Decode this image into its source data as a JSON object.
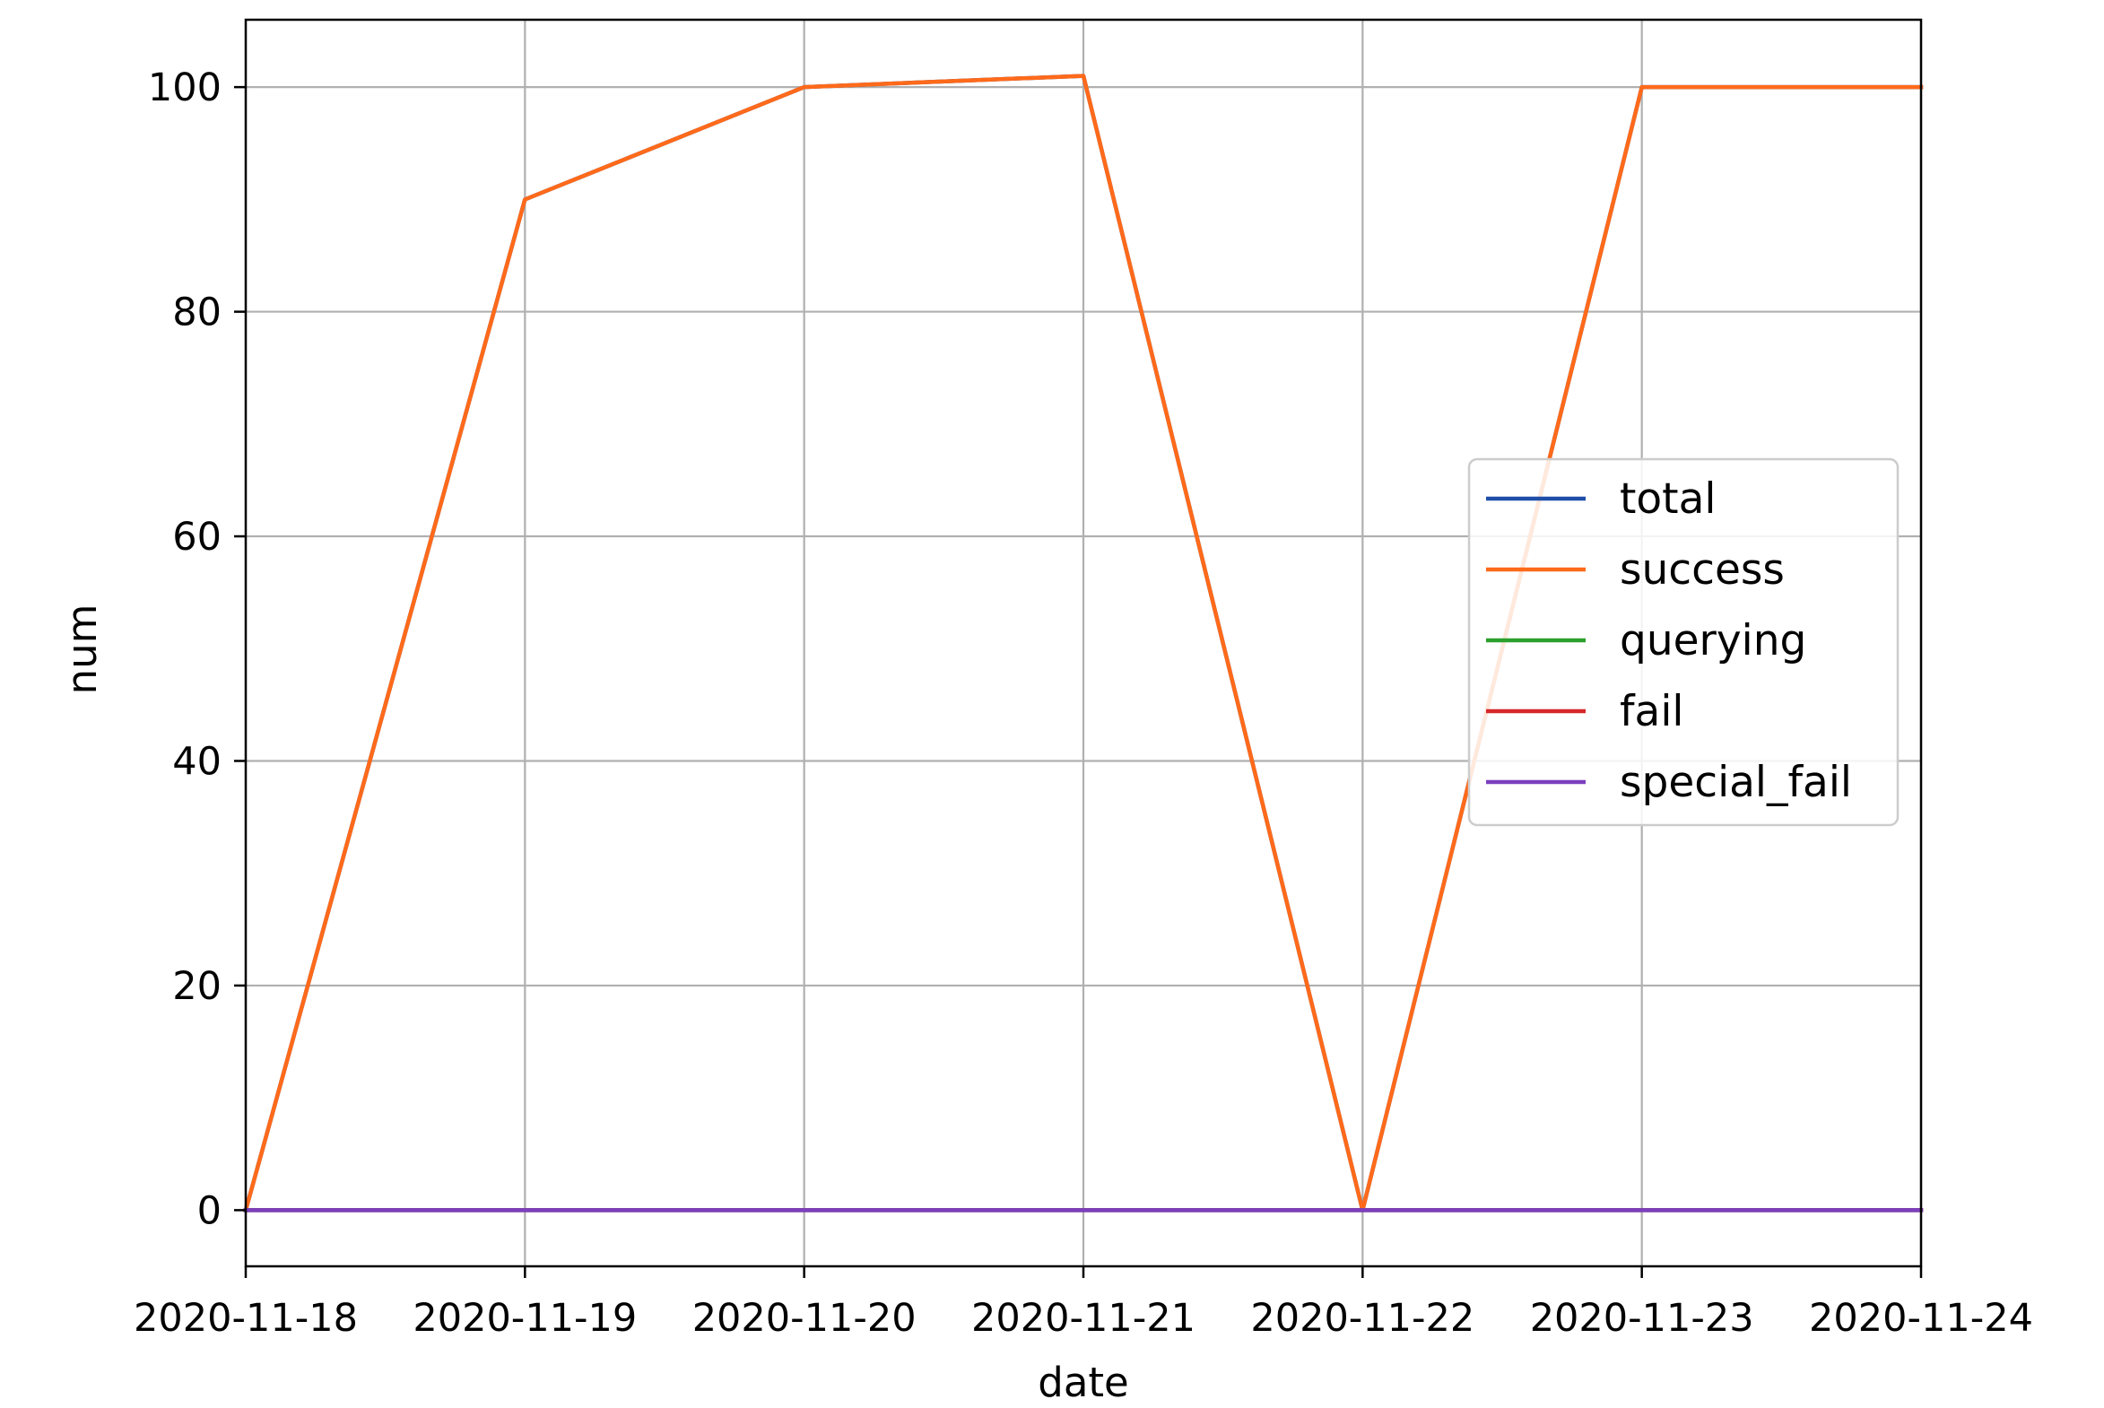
{
  "chart_data": {
    "type": "line",
    "title": "",
    "xlabel": "date",
    "ylabel": "num",
    "x": [
      "2020-11-18",
      "2020-11-19",
      "2020-11-20",
      "2020-11-21",
      "2020-11-22",
      "2020-11-23",
      "2020-11-24"
    ],
    "xlim": [
      "2020-11-18",
      "2020-11-24"
    ],
    "ylim": [
      -5,
      106
    ],
    "yticks": [
      0,
      20,
      40,
      60,
      80,
      100
    ],
    "grid": true,
    "legend_position": "center-right",
    "series": [
      {
        "name": "total",
        "color": "#1f4fa8",
        "values": [
          0,
          90,
          100,
          101,
          0,
          100,
          100
        ]
      },
      {
        "name": "success",
        "color": "#ff6a1a",
        "values": [
          0,
          90,
          100,
          101,
          0,
          100,
          100
        ]
      },
      {
        "name": "querying",
        "color": "#2ca02c",
        "values": [
          0,
          0,
          0,
          0,
          0,
          0,
          0
        ]
      },
      {
        "name": "fail",
        "color": "#d62728",
        "values": [
          0,
          0,
          0,
          0,
          0,
          0,
          0
        ]
      },
      {
        "name": "special_fail",
        "color": "#7b3fbf",
        "values": [
          0,
          0,
          0,
          0,
          0,
          0,
          0
        ]
      }
    ]
  }
}
